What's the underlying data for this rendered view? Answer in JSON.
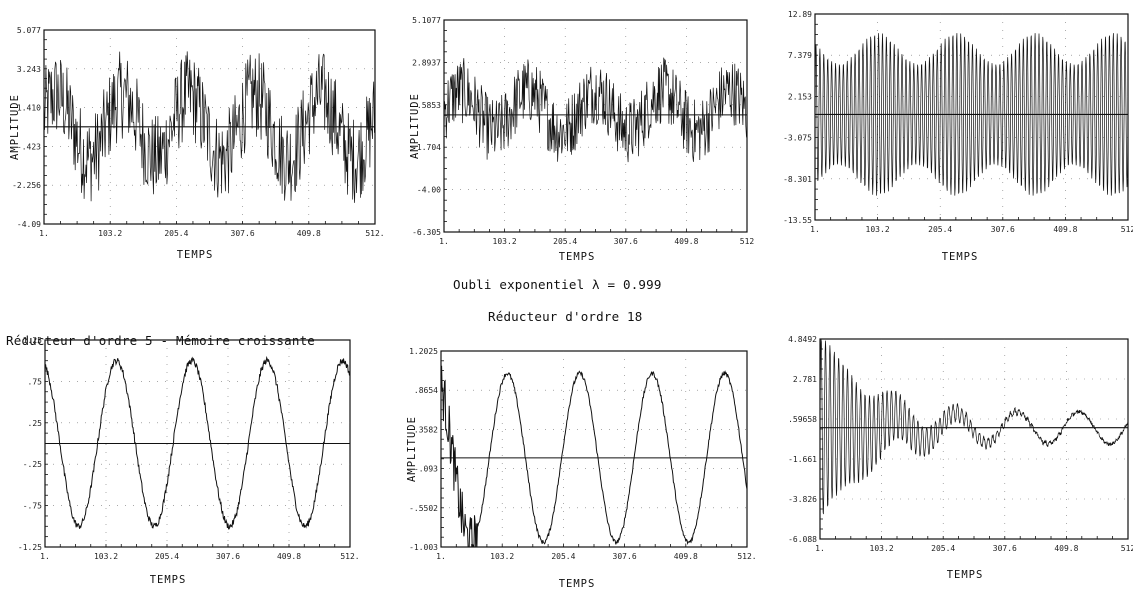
{
  "captions": {
    "oubli": "Oubli exponentiel λ = 0.999",
    "reducteur18": "Réducteur d'ordre 18",
    "reducteur5": "Réducteur d'ordre 5 - Mémoire croissante"
  },
  "chart_data": [
    {
      "type": "line",
      "xlabel": "TEMPS",
      "ylabel": "AMPLITUDE",
      "xlim": [
        1,
        512
      ],
      "ylim": [
        -4.09,
        5.077
      ],
      "x_ticks": [
        "1.",
        "103.2",
        "205.4",
        "307.6",
        "409.8",
        "512."
      ],
      "y_ticks": [
        "5.077",
        "3.243",
        "1.410",
        "-.423",
        "-2.256",
        "-4.09"
      ],
      "series": [
        {
          "signal": "noisy",
          "approx_amplitude": 2.5,
          "cycles": 5,
          "zero_line": 0.5
        }
      ]
    },
    {
      "type": "line",
      "xlabel": "TEMPS",
      "ylabel": "AMPLITUDE",
      "xlim": [
        1,
        512
      ],
      "ylim": [
        -6.305,
        5.1077
      ],
      "x_ticks": [
        "1.",
        "103.2",
        "205.4",
        "307.6",
        "409.8",
        "512"
      ],
      "y_ticks": [
        "5.1077",
        "2.8937",
        ".5853",
        "-1.704",
        "-4.00",
        "-6.305"
      ],
      "series": [
        {
          "signal": "noisy",
          "approx_amplitude": 2.0,
          "zero_line": 0.0
        }
      ]
    },
    {
      "type": "line",
      "xlabel": "TEMPS",
      "ylabel": "",
      "xlim": [
        1,
        512
      ],
      "ylim": [
        -13.55,
        12.89
      ],
      "x_ticks": [
        "1.",
        "103.2",
        "205.4",
        "307.6",
        "409.8",
        "512"
      ],
      "y_ticks": [
        "12.89",
        "7.379",
        "2.153",
        "-3.075",
        "-8.301",
        "-13.55"
      ],
      "series": [
        {
          "signal": "dense oscillation",
          "approx_amplitude": 9.5,
          "zero_line": 0.0
        }
      ]
    },
    {
      "type": "line",
      "xlabel": "TEMPS",
      "ylabel": "",
      "xlim": [
        1,
        512
      ],
      "ylim": [
        -1.25,
        1.25
      ],
      "x_ticks": [
        "1.",
        "103.2",
        "205.4",
        "307.6",
        "409.8",
        "512."
      ],
      "y_ticks": [
        "1.25",
        ".75",
        ".25",
        "-.25",
        "-.75",
        "-1.25"
      ],
      "series": [
        {
          "signal": "sine",
          "approx_amplitude": 1.0,
          "cycles": 5,
          "zero_line": 0.0
        }
      ]
    },
    {
      "type": "line",
      "xlabel": "TEMPS",
      "ylabel": "AMPLITUDE",
      "xlim": [
        1,
        512
      ],
      "ylim": [
        -1.003,
        1.2025
      ],
      "x_ticks": [
        "1.",
        "103.2",
        "205.4",
        "307.6",
        "409.8",
        "512."
      ],
      "y_ticks": [
        "1.2025",
        ".8654",
        ".3582",
        "-.093",
        "-.5502",
        "-1.003"
      ],
      "series": [
        {
          "signal": "sine",
          "approx_amplitude": 0.95,
          "cycles": 5,
          "zero_line": 0.0
        }
      ]
    },
    {
      "type": "line",
      "xlabel": "TEMPS",
      "ylabel": "",
      "xlim": [
        1,
        512
      ],
      "ylim": [
        -6.088,
        4.8492
      ],
      "x_ticks": [
        "1.",
        "103.2",
        "205.4",
        "307.6",
        "409.8",
        "512"
      ],
      "y_ticks": [
        "4.8492",
        "2.781",
        ".59658",
        "-1.661",
        "-3.826",
        "-6.088"
      ],
      "series": [
        {
          "signal": "damped oscillation",
          "approx_amplitude": 5.0,
          "zero_line": 0.0
        }
      ]
    }
  ]
}
